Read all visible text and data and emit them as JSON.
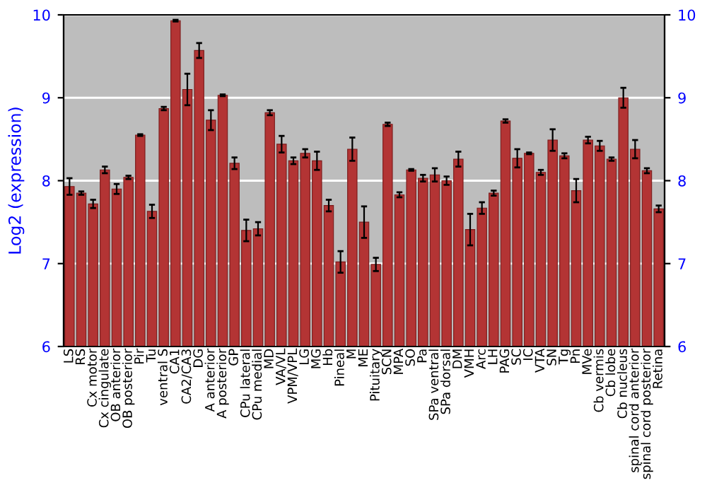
{
  "chart_data": {
    "type": "bar",
    "ylabel": "Log2 (expression)",
    "categories": [
      "LS",
      "RS",
      "Cx motor",
      "Cx cingulate",
      "OB anterior",
      "OB posterior",
      "Pir",
      "Tu",
      "ventral S",
      "CA1",
      "CA2/CA3",
      "DG",
      "A anterior",
      "A posterior",
      "GP",
      "CPu lateral",
      "CPu medial",
      "MD",
      "VA/VL",
      "VPM/VPL",
      "LG",
      "MG",
      "Hb",
      "Pineal",
      "M",
      "ME",
      "Pituitary",
      "SCN",
      "MPA",
      "SO",
      "Pa",
      "SPa ventral",
      "SPa dorsal",
      "DM",
      "VMH",
      "Arc",
      "LH",
      "PAG",
      "SC",
      "IC",
      "VTA",
      "SN",
      "Tg",
      "Pn",
      "MVe",
      "Cb vermis",
      "Cb lobe",
      "Cb nucleus",
      "spinal cord anterior",
      "spinal cord posterior",
      "Retina"
    ],
    "values": [
      7.93,
      7.85,
      7.72,
      8.13,
      7.9,
      8.04,
      8.55,
      7.63,
      8.87,
      9.93,
      9.1,
      9.57,
      8.73,
      9.03,
      8.21,
      7.4,
      7.42,
      8.82,
      8.44,
      8.24,
      8.33,
      8.24,
      7.7,
      7.02,
      8.38,
      7.5,
      6.99,
      8.68,
      7.83,
      8.13,
      8.03,
      8.07,
      8.0,
      8.26,
      7.41,
      7.67,
      7.85,
      8.72,
      8.27,
      8.33,
      8.1,
      8.49,
      8.3,
      7.88,
      8.49,
      8.42,
      8.26,
      9.0,
      8.38,
      8.12,
      7.66
    ],
    "errors": [
      0.1,
      0.02,
      0.05,
      0.04,
      0.06,
      0.02,
      0.01,
      0.08,
      0.02,
      0.01,
      0.19,
      0.09,
      0.12,
      0.01,
      0.07,
      0.13,
      0.08,
      0.03,
      0.1,
      0.04,
      0.05,
      0.11,
      0.07,
      0.13,
      0.14,
      0.19,
      0.08,
      0.02,
      0.03,
      0.01,
      0.04,
      0.08,
      0.05,
      0.09,
      0.19,
      0.07,
      0.03,
      0.02,
      0.11,
      0.01,
      0.03,
      0.13,
      0.03,
      0.14,
      0.04,
      0.06,
      0.02,
      0.12,
      0.11,
      0.03,
      0.04
    ],
    "color": "#b33434",
    "ylim": [
      6,
      10
    ],
    "yticks": [
      6,
      7,
      8,
      9,
      10
    ],
    "y2lim": [
      6,
      10
    ],
    "y2ticks": [
      6,
      7,
      8,
      9,
      10
    ],
    "grid": "y"
  }
}
